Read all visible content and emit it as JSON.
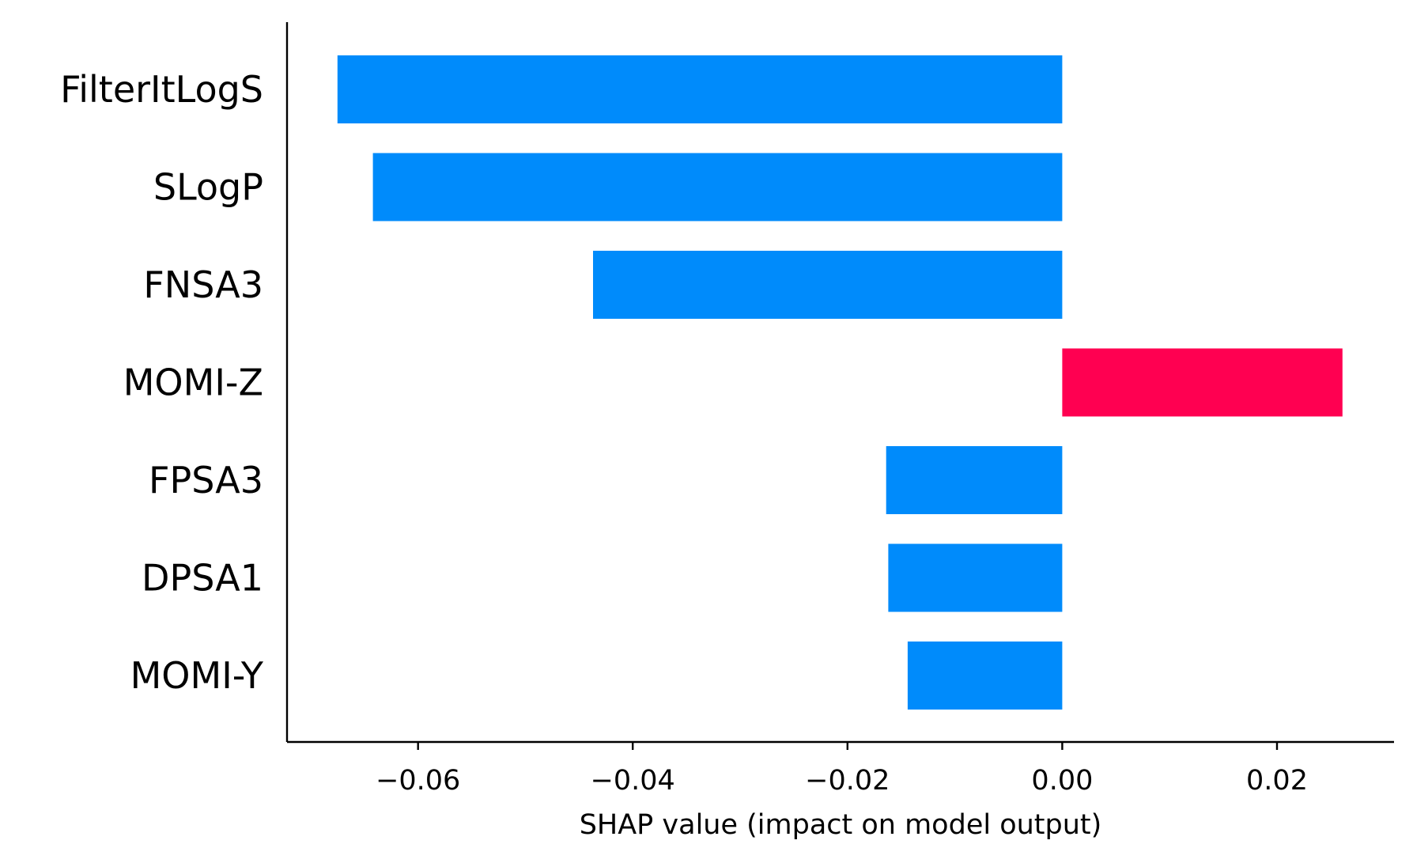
{
  "chart_data": {
    "type": "bar",
    "orientation": "horizontal",
    "categories": [
      "FilterItLogS",
      "SLogP",
      "FNSA3",
      "MOMI-Z",
      "FPSA3",
      "DPSA1",
      "MOMI-Y"
    ],
    "values": [
      -0.0675,
      -0.0642,
      -0.0437,
      0.0261,
      -0.0164,
      -0.0162,
      -0.0144
    ],
    "colors": {
      "negative": "#008bfb",
      "positive": "#ff0051"
    },
    "xlabel": "SHAP value (impact on model output)",
    "ylabel": "",
    "xlim": [
      -0.0722,
      0.0309
    ],
    "xticks": [
      -0.06,
      -0.04,
      -0.02,
      0.0,
      0.02
    ],
    "xtick_labels": [
      "−0.06",
      "−0.04",
      "−0.02",
      "0.00",
      "0.02"
    ],
    "grid": false
  }
}
